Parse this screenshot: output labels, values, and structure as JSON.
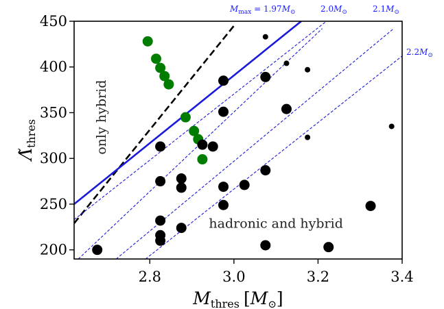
{
  "chart_data": {
    "type": "scatter",
    "xlabel": "M",
    "xlabel_sub": "thres",
    "xlabel_unit": "M",
    "xlabel_unit_sub": "⊙",
    "ylabel": "Λ̃",
    "ylabel_sub": "thres",
    "xlim": [
      2.62,
      3.4
    ],
    "ylim": [
      190,
      450
    ],
    "xticks": [
      2.8,
      3.0,
      3.2,
      3.4
    ],
    "xtick_labels": [
      "2.8",
      "3.0",
      "3.2",
      "3.4"
    ],
    "yticks": [
      200,
      250,
      300,
      350,
      400,
      450
    ],
    "ytick_labels": [
      "200",
      "250",
      "300",
      "350",
      "400",
      "450"
    ],
    "grid": false,
    "annotations": [
      {
        "text": "only hybrid",
        "x": 2.695,
        "y": 345,
        "rotation": -90
      },
      {
        "text": "hadronic and hybrid",
        "x": 3.1,
        "y": 224,
        "rotation": 0
      }
    ],
    "lines": [
      {
        "name": "dashed-black",
        "style": "dashed",
        "color": "#000000",
        "points": [
          [
            2.62,
            229
          ],
          [
            3.0,
            445
          ]
        ]
      },
      {
        "name": "solid-blue",
        "style": "solid",
        "color": "#1a1adb",
        "points": [
          [
            2.62,
            250
          ],
          [
            3.16,
            450
          ]
        ]
      },
      {
        "label_main": "M",
        "label_sub": "max",
        "label_rest": " = 1.97",
        "label_unit": "M",
        "label_unit_sub": "⊙",
        "style": "dotted-dense",
        "color": "#1a1adb",
        "points": [
          [
            2.62,
            233
          ],
          [
            3.22,
            450
          ]
        ]
      },
      {
        "label_main": "2.0",
        "label_unit": "M",
        "label_unit_sub": "⊙",
        "style": "dotted-dense",
        "color": "#1a1adb",
        "points": [
          [
            2.63,
            190
          ],
          [
            3.21,
            442
          ]
        ]
      },
      {
        "label_main": "2.1",
        "label_unit": "M",
        "label_unit_sub": "⊙",
        "style": "dotted-dense",
        "color": "#1a1adb",
        "points": [
          [
            2.72,
            190
          ],
          [
            3.38,
            442
          ]
        ]
      },
      {
        "label_main": "2.2",
        "label_unit": "M",
        "label_unit_sub": "⊙",
        "style": "dotted-dense",
        "color": "#1a1adb",
        "points": [
          [
            2.79,
            190
          ],
          [
            3.4,
            412
          ]
        ]
      }
    ],
    "series": [
      {
        "color": "#007d00",
        "points": [
          {
            "x": 2.795,
            "y": 428,
            "size": "large"
          },
          {
            "x": 2.815,
            "y": 409,
            "size": "large"
          },
          {
            "x": 2.825,
            "y": 399,
            "size": "large"
          },
          {
            "x": 2.835,
            "y": 390,
            "size": "large"
          },
          {
            "x": 2.845,
            "y": 381,
            "size": "large"
          },
          {
            "x": 2.885,
            "y": 345,
            "size": "large"
          },
          {
            "x": 2.905,
            "y": 330,
            "size": "large"
          },
          {
            "x": 2.915,
            "y": 321,
            "size": "large"
          },
          {
            "x": 2.925,
            "y": 299,
            "size": "large"
          }
        ]
      },
      {
        "color": "#000000",
        "points": [
          {
            "x": 2.675,
            "y": 200,
            "size": "large"
          },
          {
            "x": 2.825,
            "y": 313,
            "size": "large"
          },
          {
            "x": 2.825,
            "y": 275,
            "size": "large"
          },
          {
            "x": 2.825,
            "y": 232,
            "size": "large"
          },
          {
            "x": 2.825,
            "y": 216,
            "size": "large"
          },
          {
            "x": 2.825,
            "y": 210,
            "size": "large"
          },
          {
            "x": 2.875,
            "y": 278,
            "size": "large"
          },
          {
            "x": 2.875,
            "y": 268,
            "size": "large"
          },
          {
            "x": 2.875,
            "y": 224,
            "size": "large"
          },
          {
            "x": 2.925,
            "y": 315,
            "size": "large"
          },
          {
            "x": 2.95,
            "y": 313,
            "size": "large"
          },
          {
            "x": 2.975,
            "y": 385,
            "size": "large"
          },
          {
            "x": 2.975,
            "y": 351,
            "size": "large"
          },
          {
            "x": 2.975,
            "y": 269,
            "size": "large"
          },
          {
            "x": 2.975,
            "y": 249,
            "size": "large"
          },
          {
            "x": 3.025,
            "y": 271,
            "size": "large"
          },
          {
            "x": 3.075,
            "y": 389,
            "size": "large"
          },
          {
            "x": 3.075,
            "y": 287,
            "size": "large"
          },
          {
            "x": 3.075,
            "y": 205,
            "size": "large"
          },
          {
            "x": 3.125,
            "y": 354,
            "size": "large"
          },
          {
            "x": 3.225,
            "y": 203,
            "size": "large"
          },
          {
            "x": 3.325,
            "y": 248,
            "size": "large"
          },
          {
            "x": 3.075,
            "y": 433,
            "size": "small"
          },
          {
            "x": 3.125,
            "y": 404,
            "size": "small"
          },
          {
            "x": 3.175,
            "y": 397,
            "size": "small"
          },
          {
            "x": 3.175,
            "y": 323,
            "size": "small"
          },
          {
            "x": 3.375,
            "y": 335,
            "size": "small"
          }
        ]
      }
    ]
  }
}
